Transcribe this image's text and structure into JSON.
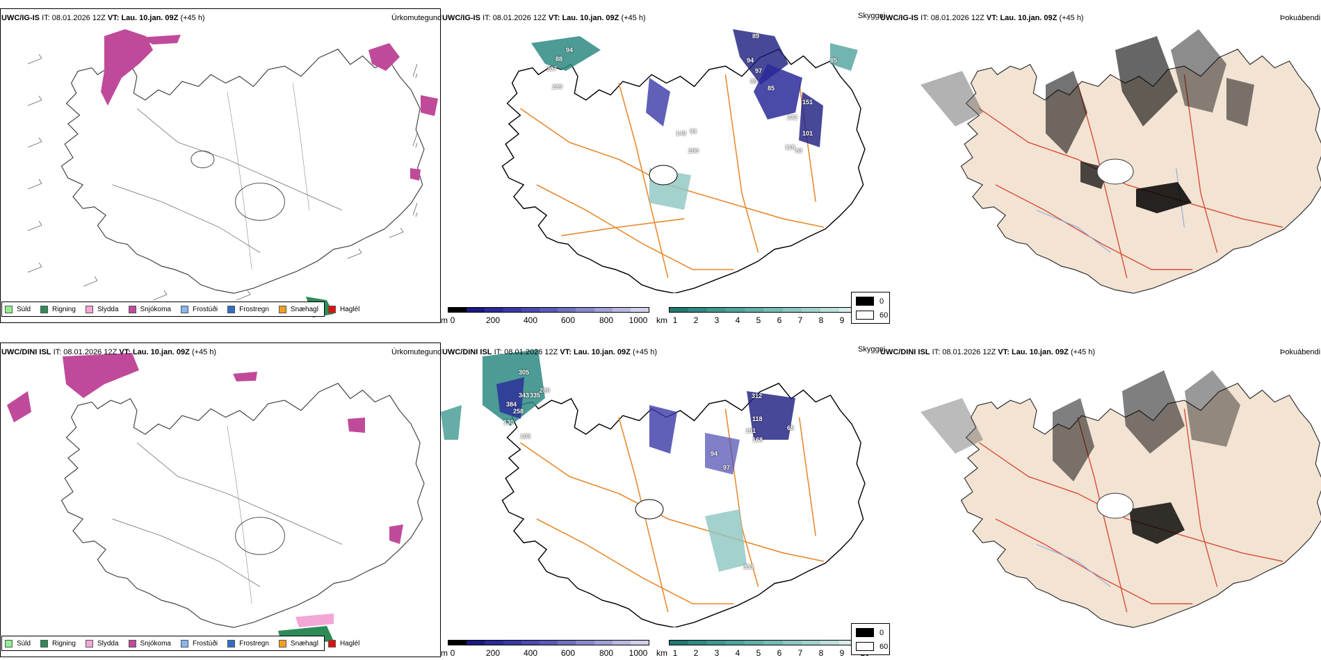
{
  "rows": [
    {
      "model": "UWC/IG-IS",
      "it_label": "IT:",
      "it_value": "08.01.2026 12Z",
      "vt_label": "VT:",
      "vt_value": "Lau. 10.jan. 09Z",
      "lead": "(+45 h)"
    },
    {
      "model": "UWC/DINI ISL",
      "it_label": "IT:",
      "it_value": "08.01.2026 12Z",
      "vt_label": "VT:",
      "vt_value": "Lau. 10.jan. 09Z",
      "lead": "(+45 h)"
    }
  ],
  "panel_titles": {
    "precip": "Úrkomutegund",
    "visibility": "Skyggni",
    "fog": "Þokuábendi"
  },
  "precip_legend": [
    {
      "label": "Súld",
      "color": "#90ee90"
    },
    {
      "label": "Rigning",
      "color": "#2e8b57"
    },
    {
      "label": "Slydda",
      "color": "#f4a6d7"
    },
    {
      "label": "Snjókoma",
      "color": "#c04a9a"
    },
    {
      "label": "Frostúði",
      "color": "#87b6ef"
    },
    {
      "label": "Frostregn",
      "color": "#2f6fc4"
    },
    {
      "label": "Snæhagl",
      "color": "#f0a020"
    },
    {
      "label": "Haglél",
      "color": "#e01010"
    }
  ],
  "vis_bar_m": {
    "unit": "m",
    "ticks": [
      "0",
      "200",
      "400",
      "600",
      "800",
      "1000"
    ],
    "colors": [
      "#000000",
      "#1a1a80",
      "#2a2a9a",
      "#3838a8",
      "#4a4ab0",
      "#5a5ab8",
      "#7070c0",
      "#8888cc",
      "#a0a0d6",
      "#b8b8e0",
      "#d0d0ec"
    ]
  },
  "vis_bar_km": {
    "unit": "km",
    "ticks": [
      "1",
      "2",
      "3",
      "4",
      "5",
      "6",
      "7",
      "8",
      "9",
      "10"
    ],
    "colors": [
      "#1e7a72",
      "#2e8a82",
      "#3e9890",
      "#4fa39c",
      "#62aea8",
      "#76bab4",
      "#8cc6c0",
      "#a2d2cd",
      "#bcdfdb",
      "#d8ece9",
      "#ffffff"
    ]
  },
  "cloud_legend": [
    {
      "label": "0",
      "color": "#000000"
    },
    {
      "label": "60",
      "color": "#ffffff"
    }
  ],
  "vis_labels_top": [
    "94",
    "88",
    "207",
    "239",
    "89",
    "94",
    "97",
    "89",
    "85",
    "232",
    "151",
    "85",
    "93",
    "149",
    "200",
    "101",
    "118",
    "83"
  ],
  "vis_labels_bottom": [
    "305",
    "384",
    "343",
    "335",
    "289",
    "258",
    "130",
    "108",
    "312",
    "118",
    "151",
    "168",
    "65",
    "94",
    "97",
    "333"
  ]
}
